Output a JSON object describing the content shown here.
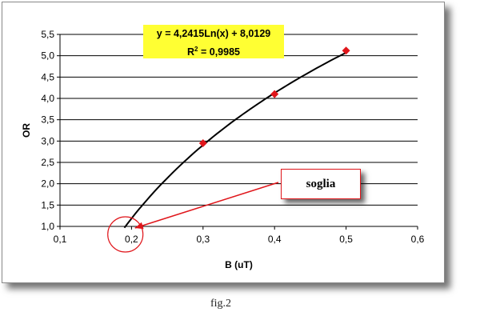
{
  "chart_data": {
    "type": "line",
    "xlabel": "B (uT)",
    "ylabel": "OR",
    "xlim": [
      0.1,
      0.6
    ],
    "ylim": [
      1.0,
      5.5
    ],
    "x_ticks": [
      "0,1",
      "0,2",
      "0,3",
      "0,4",
      "0,5",
      "0,6"
    ],
    "y_ticks": [
      "1,0",
      "1,5",
      "2,0",
      "2,5",
      "3,0",
      "3,5",
      "4,0",
      "4,5",
      "5,0",
      "5,5"
    ],
    "points": [
      {
        "x": 0.3,
        "y": 2.95
      },
      {
        "x": 0.4,
        "y": 4.1
      },
      {
        "x": 0.5,
        "y": 5.12
      }
    ],
    "trendline": {
      "type": "logarithmic",
      "a": 4.2415,
      "b": 8.0129,
      "x_from": 0.19,
      "x_to": 0.5
    },
    "equation_line1": "y = 4,2415Ln(x) + 8,0129",
    "equation_r2_label": "R",
    "equation_r2_sup": "2",
    "equation_r2_value": " = 0,9985",
    "annotation": "soglia",
    "grid": "horizontal",
    "colors": {
      "points": "#e0161b",
      "trendline": "#000000",
      "annotation": "#e0161b",
      "equation_bg": "#ffff33"
    }
  },
  "caption": "fig.2"
}
